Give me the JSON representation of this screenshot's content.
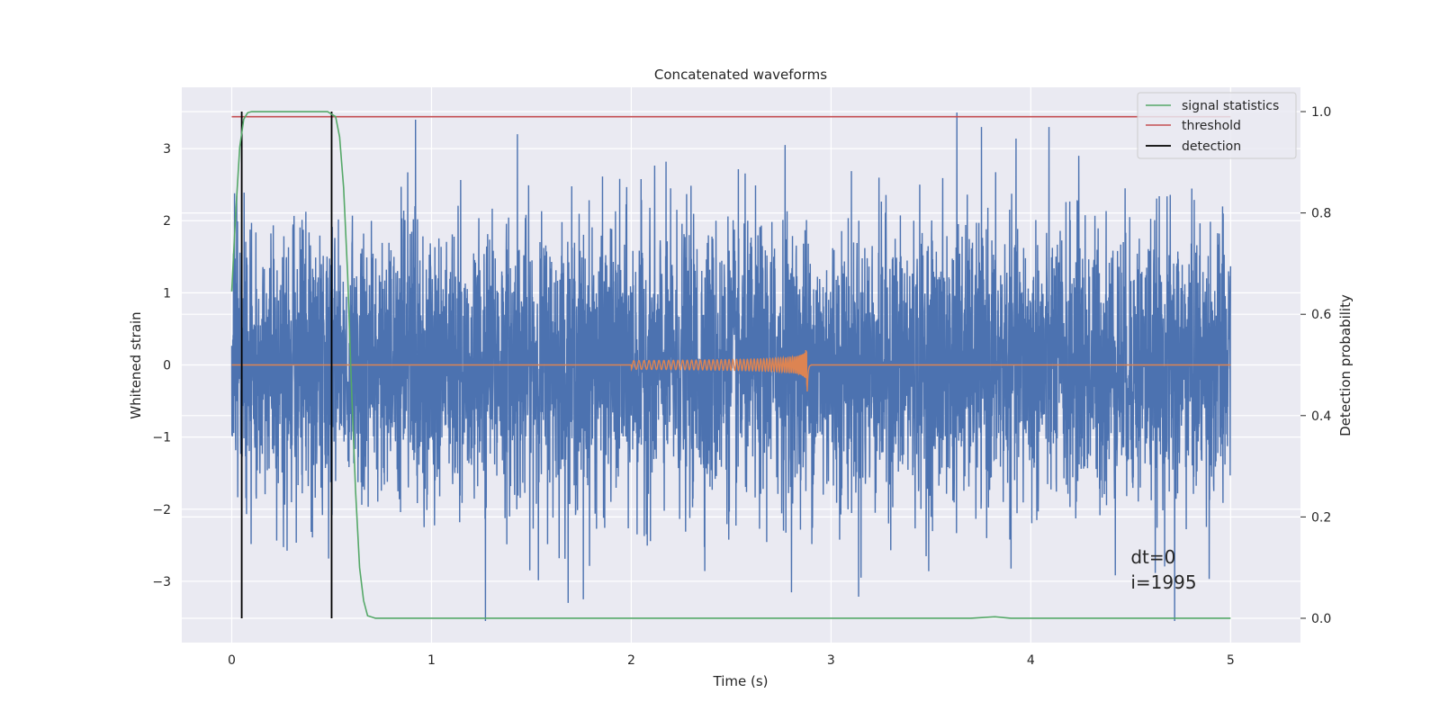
{
  "colors": {
    "background": "#eaeaf2",
    "grid": "#ffffff",
    "strain": "#4c72b0",
    "template": "#dd8452",
    "signal_statistics": "#55a868",
    "threshold": "#c44e52",
    "detection": "#000000"
  },
  "chart_data": {
    "type": "line",
    "title": "Concatenated waveforms",
    "xlabel": "Time (s)",
    "ylabel": "Whitened strain",
    "y2label": "Detection probability",
    "xlim": [
      -0.25,
      5.35
    ],
    "ylim": [
      -3.85,
      3.85
    ],
    "y2lim": [
      -0.048,
      1.048
    ],
    "grid": true,
    "legend_position": "top-right",
    "x_ticks": [
      0,
      1,
      2,
      3,
      4,
      5
    ],
    "x_tick_labels": [
      "0",
      "1",
      "2",
      "3",
      "4",
      "5"
    ],
    "y_ticks": [
      3,
      2,
      1,
      0,
      -1,
      -2,
      -3
    ],
    "y_tick_labels": [
      "3",
      "2",
      "1",
      "0",
      "−1",
      "−2",
      "−3"
    ],
    "y2_ticks": [
      1.0,
      0.8,
      0.6,
      0.4,
      0.2,
      0.0
    ],
    "y2_tick_labels": [
      "1.0",
      "0.8",
      "0.6",
      "0.4",
      "0.2",
      "0.0"
    ],
    "series": [
      {
        "key": "strain",
        "axis": "left",
        "description": "whitened strain noise, approx. unit variance, 0–5 s",
        "x_range": [
          0,
          5
        ],
        "noise_std": 0.95,
        "peaks": [
          {
            "x": 0.92,
            "y": 3.4
          },
          {
            "x": 1.27,
            "y": -3.55
          },
          {
            "x": 1.43,
            "y": 3.2
          },
          {
            "x": 1.76,
            "y": -3.25
          },
          {
            "x": 2.77,
            "y": 3.05
          },
          {
            "x": 3.15,
            "y": -2.95
          },
          {
            "x": 3.63,
            "y": 3.5
          },
          {
            "x": 4.24,
            "y": 2.9
          },
          {
            "x": 4.72,
            "y": -3.55
          }
        ]
      },
      {
        "key": "template",
        "axis": "left",
        "description": "chirp template",
        "x_range": [
          2.0,
          2.9
        ],
        "merger_x": 2.88,
        "peak_amplitude": 0.35,
        "min_amplitude": -0.45
      },
      {
        "name": "signal statistics",
        "key": "signal_statistics",
        "axis": "right",
        "x": [
          0.0,
          0.02,
          0.04,
          0.06,
          0.08,
          0.1,
          0.2,
          0.3,
          0.4,
          0.48,
          0.52,
          0.54,
          0.56,
          0.58,
          0.6,
          0.62,
          0.64,
          0.66,
          0.68,
          0.72,
          1.0,
          2.0,
          3.0,
          3.7,
          3.82,
          3.9,
          4.0,
          5.0
        ],
        "y": [
          0.645,
          0.8,
          0.93,
          0.985,
          0.998,
          1.0,
          1.0,
          1.0,
          1.0,
          1.0,
          0.99,
          0.95,
          0.85,
          0.68,
          0.45,
          0.25,
          0.1,
          0.035,
          0.005,
          0.0,
          0.0,
          0.0,
          0.0,
          0.0,
          0.003,
          0.0,
          0.0,
          0.0
        ]
      },
      {
        "name": "threshold",
        "key": "threshold",
        "axis": "right",
        "x": [
          0,
          5
        ],
        "y": [
          0.99,
          0.99
        ]
      },
      {
        "name": "detection",
        "key": "detection",
        "axis": "right",
        "vlines": [
          0.05,
          0.5
        ],
        "y_range": [
          0,
          1
        ]
      }
    ],
    "annotations": [
      "dt=0",
      "i=1995"
    ],
    "annotation_position": {
      "x": 4.5,
      "y": -2.75
    }
  }
}
